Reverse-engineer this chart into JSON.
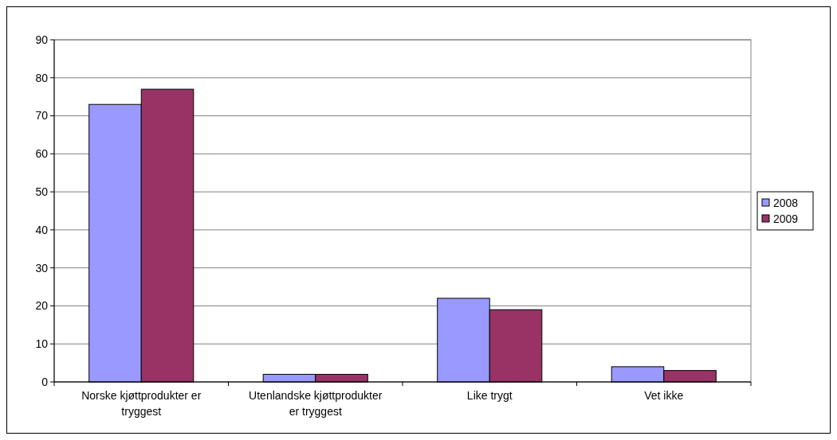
{
  "chart_data": {
    "type": "bar",
    "categories": [
      "Norske kjøttprodukter er tryggest",
      "Utenlandske kjøttprodukter er tryggest",
      "Like trygt",
      "Vet ikke"
    ],
    "series": [
      {
        "name": "2008",
        "color": "#9999ff",
        "values": [
          73,
          2,
          22,
          4
        ]
      },
      {
        "name": "2009",
        "color": "#993366",
        "values": [
          77,
          2,
          19,
          3
        ]
      }
    ],
    "ylim": [
      0,
      90
    ],
    "yticks": [
      0,
      10,
      20,
      30,
      40,
      50,
      60,
      70,
      80,
      90
    ],
    "grid": "y",
    "legend": "right"
  }
}
